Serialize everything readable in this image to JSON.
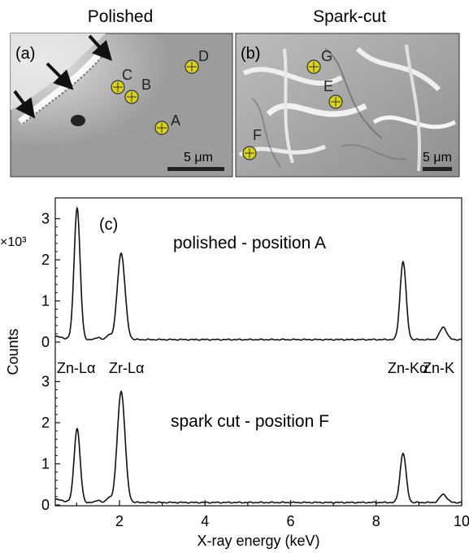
{
  "panel_titles": {
    "left": "Polished",
    "right": "Spark-cut"
  },
  "panel_a": {
    "label": "(a)",
    "points": [
      "C",
      "B",
      "D",
      "A"
    ],
    "scale": "5 μm"
  },
  "panel_b": {
    "label": "(b)",
    "points": [
      "G",
      "E",
      "F"
    ],
    "scale": "5 μm"
  },
  "panel_c": {
    "label": "(c)",
    "exponent_label": "×10³",
    "ylabel": "Counts",
    "xlabel": "X-ray energy (keV)",
    "trace_top_label": "polished - position A",
    "trace_bottom_label": "spark cut - position F",
    "peak_labels": [
      "Zn-Lα",
      "Zr-Lα",
      "Zn-Kα",
      "Zn-K"
    ]
  },
  "chart_data": {
    "type": "line",
    "title": "",
    "xlabel": "X-ray energy (keV)",
    "ylabel": "Counts",
    "xlim": [
      0.5,
      10
    ],
    "x_ticks": [
      "2",
      "4",
      "6",
      "8",
      "10"
    ],
    "y_ticks_top": [
      "0",
      "1",
      "2",
      "3"
    ],
    "y_ticks_bottom": [
      "0",
      "1",
      "2",
      "3"
    ],
    "series": [
      {
        "name": "polished - position A",
        "peaks": [
          {
            "x": 1.01,
            "y": 3.2
          },
          {
            "x": 2.04,
            "y": 2.1
          },
          {
            "x": 8.63,
            "y": 1.9
          },
          {
            "x": 9.57,
            "y": 0.3
          }
        ]
      },
      {
        "name": "spark cut - position F",
        "peaks": [
          {
            "x": 1.01,
            "y": 1.8
          },
          {
            "x": 2.04,
            "y": 2.7
          },
          {
            "x": 8.63,
            "y": 1.2
          },
          {
            "x": 9.57,
            "y": 0.2
          }
        ]
      }
    ]
  }
}
